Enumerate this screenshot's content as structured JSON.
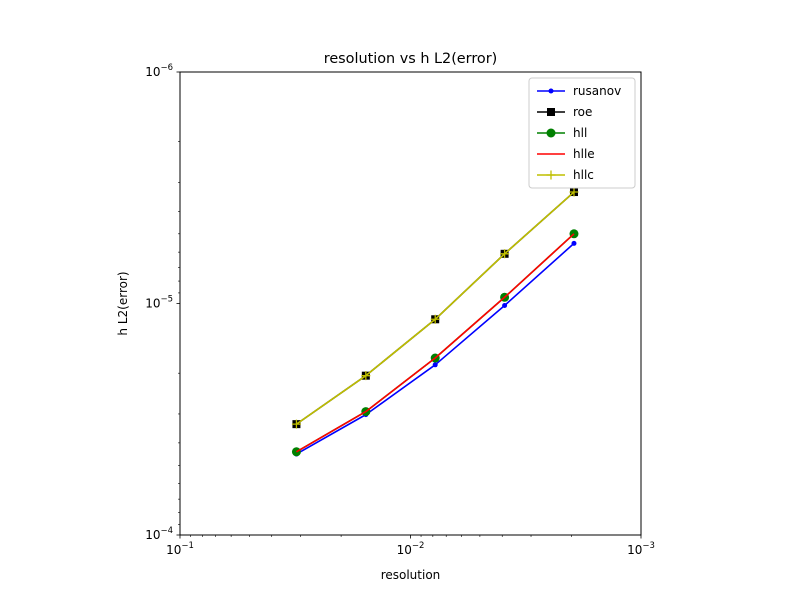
{
  "chart_data": {
    "type": "line",
    "title": "resolution vs h L2(error)",
    "xlabel": "resolution",
    "ylabel": "h L2(error)",
    "xscale": "log",
    "yscale": "log",
    "x_inverted": true,
    "y_inverted": true,
    "xlim": [
      0.1,
      0.001
    ],
    "ylim": [
      0.0001,
      1e-06
    ],
    "x_tick_labels": [
      {
        "value": 0.1,
        "base": "10",
        "exp": "−1"
      },
      {
        "value": 0.01,
        "base": "10",
        "exp": "−2"
      },
      {
        "value": 0.001,
        "base": "10",
        "exp": "−3"
      }
    ],
    "y_tick_labels": [
      {
        "value": 0.0001,
        "base": "10",
        "exp": "−4"
      },
      {
        "value": 1e-05,
        "base": "10",
        "exp": "−5"
      },
      {
        "value": 1e-06,
        "base": "10",
        "exp": "−6"
      }
    ],
    "grid": false,
    "legend_position": "top-right",
    "x": [
      0.03125,
      0.015625,
      0.0078125,
      0.00390625,
      0.001953125
    ],
    "series": [
      {
        "name": "rusanov",
        "color": "#0000ff",
        "marker": "dot",
        "values": [
          4.47e-05,
          3.02e-05,
          1.84e-05,
          1.02e-05,
          5.5e-06
        ]
      },
      {
        "name": "roe",
        "color": "#000000",
        "marker": "square",
        "values": [
          3.32e-05,
          2.05e-05,
          1.17e-05,
          6.1e-06,
          3.3e-06
        ]
      },
      {
        "name": "hll",
        "color": "#008000",
        "marker": "circle",
        "values": [
          4.37e-05,
          2.93e-05,
          1.72e-05,
          9.4e-06,
          5e-06
        ]
      },
      {
        "name": "hlle",
        "color": "#ff0000",
        "marker": "none",
        "values": [
          4.37e-05,
          2.93e-05,
          1.72e-05,
          9.4e-06,
          5e-06
        ]
      },
      {
        "name": "hllc",
        "color": "#bfbf00",
        "marker": "plus",
        "values": [
          3.32e-05,
          2.05e-05,
          1.17e-05,
          6.1e-06,
          3.3e-06
        ]
      }
    ]
  }
}
